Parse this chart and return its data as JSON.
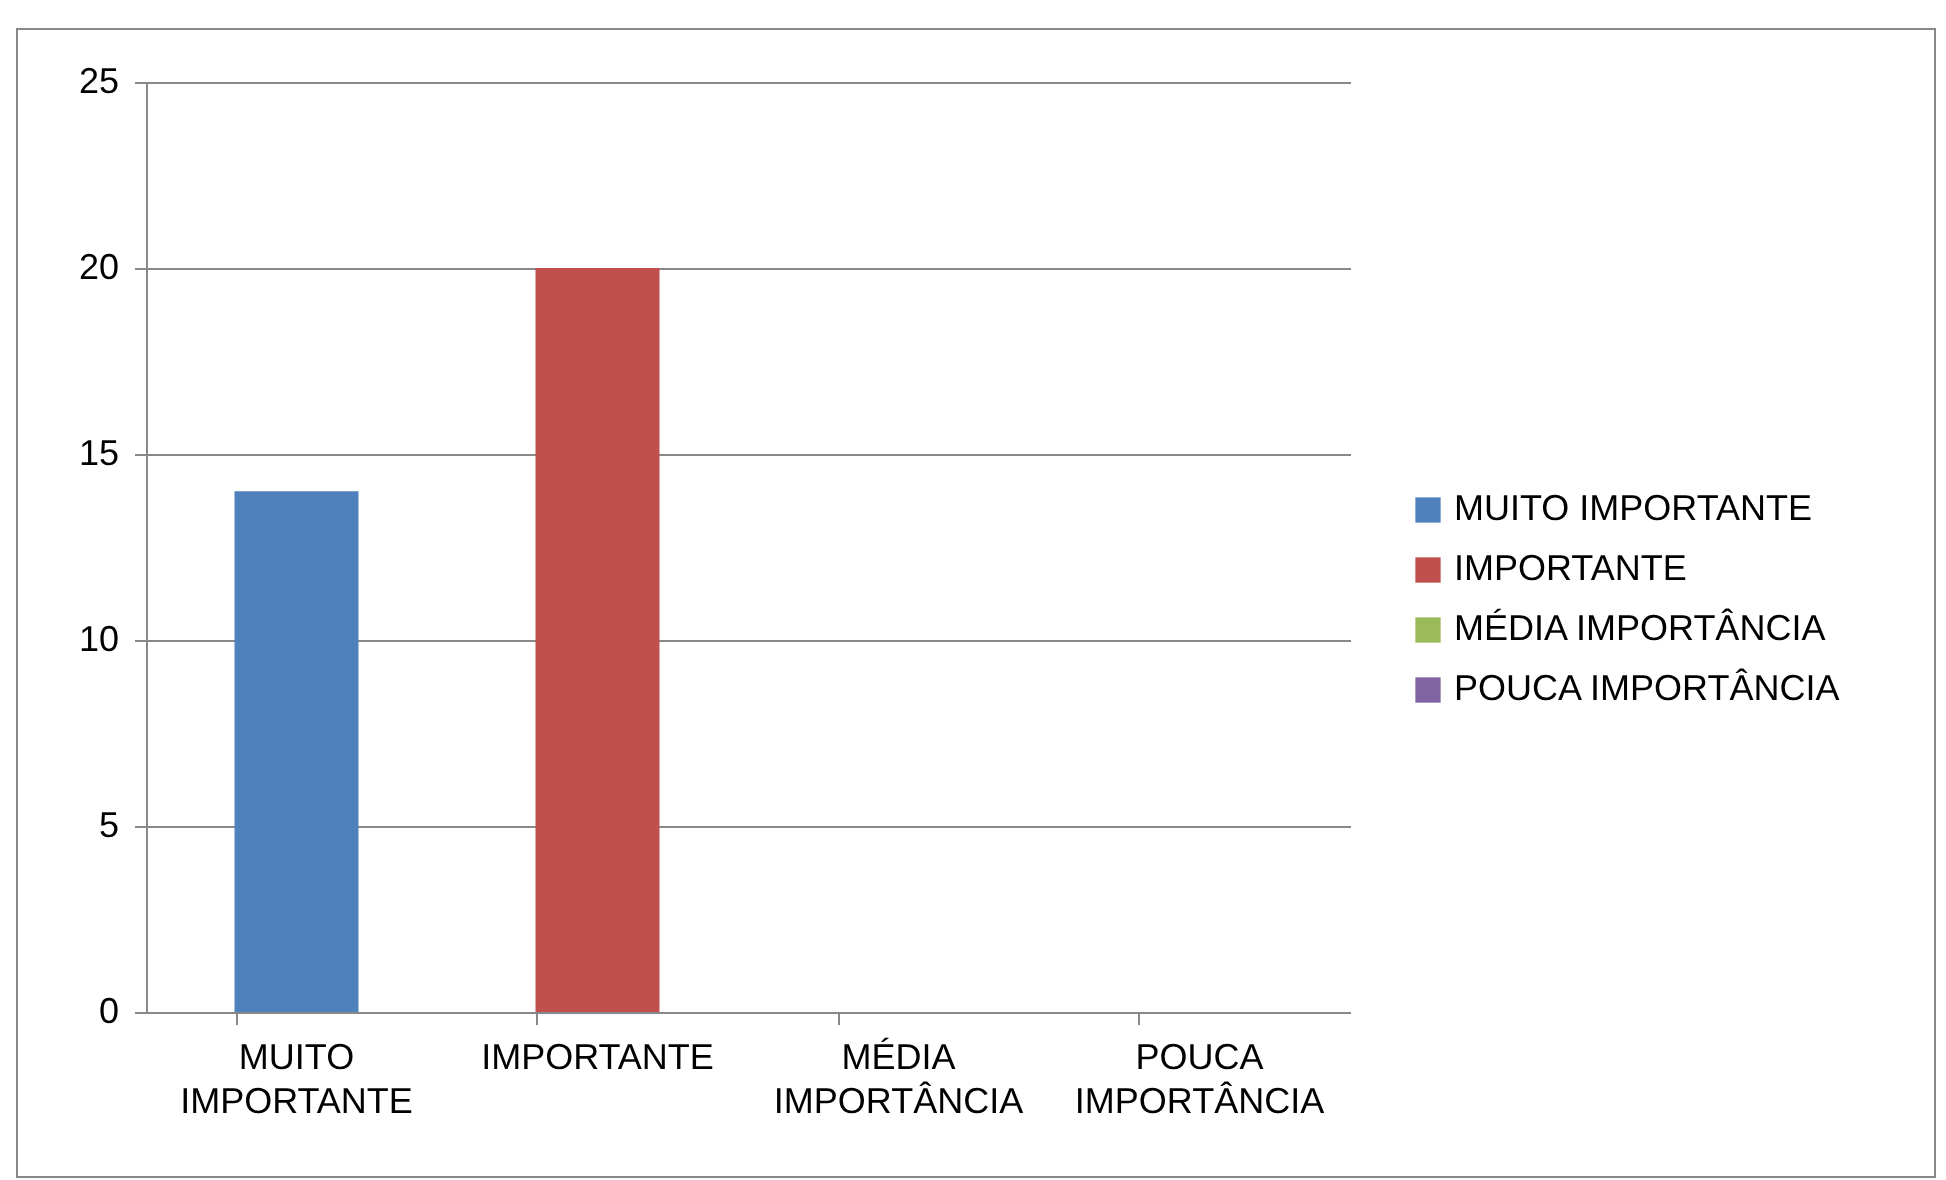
{
  "chart_data": {
    "type": "bar",
    "categories": [
      "MUITO IMPORTANTE",
      "IMPORTANTE",
      "MÉDIA IMPORTÂNCIA",
      "POUCA IMPORTÂNCIA"
    ],
    "series": [
      {
        "name": "MUITO IMPORTANTE",
        "color": "#4f81bd",
        "values": [
          14,
          null,
          null,
          null
        ]
      },
      {
        "name": "IMPORTANTE",
        "color": "#c0504d",
        "values": [
          null,
          20,
          null,
          null
        ]
      },
      {
        "name": "MÉDIA IMPORTÂNCIA",
        "color": "#9bbb59",
        "values": [
          null,
          null,
          0,
          null
        ]
      },
      {
        "name": "POUCA IMPORTÂNCIA",
        "color": "#8064a2",
        "values": [
          null,
          null,
          null,
          0
        ]
      }
    ],
    "ylim": [
      0,
      25
    ],
    "yticks": [
      0,
      5,
      10,
      15,
      20,
      25
    ],
    "grid": "y",
    "legend": "right"
  }
}
